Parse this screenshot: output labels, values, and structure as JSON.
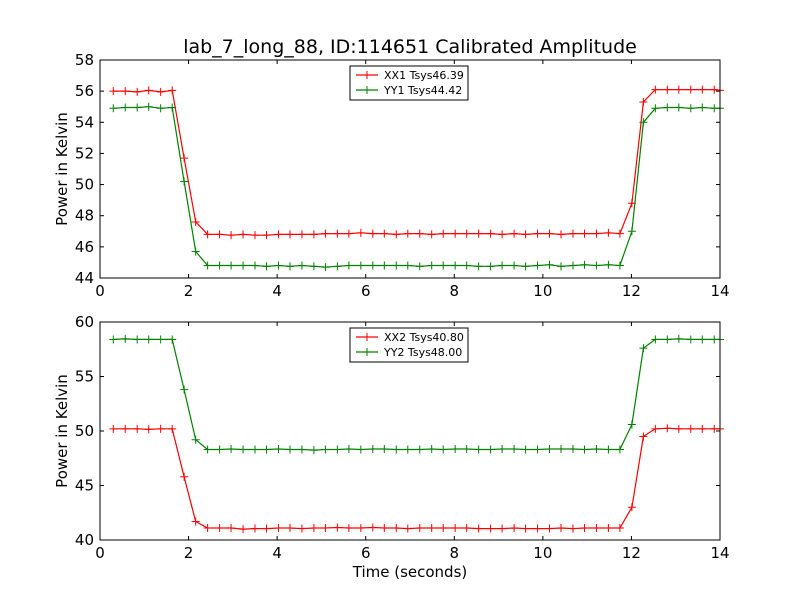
{
  "figure": {
    "title": "lab_7_long_88, ID:114651 Calibrated Amplitude"
  },
  "chart_data": [
    {
      "type": "line",
      "title": "lab_7_long_88, ID:114651 Calibrated Amplitude",
      "xlabel": "",
      "ylabel": "Power in Kelvin",
      "xlim": [
        0,
        14
      ],
      "ylim": [
        44,
        58
      ],
      "xticks": [
        0,
        2,
        4,
        6,
        8,
        10,
        12,
        14
      ],
      "yticks": [
        44,
        46,
        48,
        50,
        52,
        54,
        56,
        58
      ],
      "legend_position": "top-center",
      "x": [
        0.3,
        0.57,
        0.84,
        1.1,
        1.37,
        1.63,
        1.9,
        2.16,
        2.43,
        2.7,
        2.96,
        3.23,
        3.5,
        3.76,
        4.03,
        4.29,
        4.56,
        4.83,
        5.09,
        5.36,
        5.62,
        5.89,
        6.16,
        6.42,
        6.69,
        6.95,
        7.22,
        7.49,
        7.75,
        8.02,
        8.28,
        8.55,
        8.82,
        9.08,
        9.35,
        9.61,
        9.88,
        10.15,
        10.41,
        10.68,
        10.94,
        11.21,
        11.48,
        11.74,
        12.01,
        12.27,
        12.54,
        12.81,
        13.07,
        13.34,
        13.6,
        13.87,
        14.0
      ],
      "series": [
        {
          "name": "XX1 Tsys46.39",
          "color": "#ff0000",
          "values": [
            56.0,
            56.0,
            55.95,
            56.05,
            55.95,
            56.05,
            51.7,
            47.6,
            46.8,
            46.8,
            46.75,
            46.8,
            46.75,
            46.75,
            46.8,
            46.8,
            46.8,
            46.8,
            46.85,
            46.85,
            46.85,
            46.9,
            46.85,
            46.85,
            46.8,
            46.85,
            46.85,
            46.8,
            46.85,
            46.85,
            46.85,
            46.85,
            46.85,
            46.8,
            46.85,
            46.8,
            46.85,
            46.85,
            46.8,
            46.85,
            46.85,
            46.85,
            46.9,
            46.85,
            48.8,
            55.3,
            56.1,
            56.1,
            56.1,
            56.1,
            56.1,
            56.1,
            56.05
          ]
        },
        {
          "name": "YY1 Tsys44.42",
          "color": "#008000",
          "values": [
            54.9,
            54.95,
            54.95,
            55.0,
            54.9,
            54.95,
            50.2,
            45.7,
            44.8,
            44.8,
            44.8,
            44.8,
            44.8,
            44.75,
            44.8,
            44.75,
            44.8,
            44.75,
            44.7,
            44.75,
            44.8,
            44.8,
            44.8,
            44.8,
            44.8,
            44.8,
            44.75,
            44.8,
            44.8,
            44.8,
            44.8,
            44.75,
            44.75,
            44.8,
            44.8,
            44.75,
            44.8,
            44.85,
            44.75,
            44.8,
            44.85,
            44.8,
            44.85,
            44.8,
            47.0,
            54.0,
            54.9,
            54.95,
            54.95,
            54.9,
            54.95,
            54.9,
            54.9
          ]
        }
      ]
    },
    {
      "type": "line",
      "title": "",
      "xlabel": "Time (seconds)",
      "ylabel": "Power in Kelvin",
      "xlim": [
        0,
        14
      ],
      "ylim": [
        40,
        60
      ],
      "xticks": [
        0,
        2,
        4,
        6,
        8,
        10,
        12,
        14
      ],
      "yticks": [
        40,
        45,
        50,
        55,
        60
      ],
      "legend_position": "top-center",
      "x": [
        0.3,
        0.57,
        0.84,
        1.1,
        1.37,
        1.63,
        1.9,
        2.16,
        2.43,
        2.7,
        2.96,
        3.23,
        3.5,
        3.76,
        4.03,
        4.29,
        4.56,
        4.83,
        5.09,
        5.36,
        5.62,
        5.89,
        6.16,
        6.42,
        6.69,
        6.95,
        7.22,
        7.49,
        7.75,
        8.02,
        8.28,
        8.55,
        8.82,
        9.08,
        9.35,
        9.61,
        9.88,
        10.15,
        10.41,
        10.68,
        10.94,
        11.21,
        11.48,
        11.74,
        12.01,
        12.27,
        12.54,
        12.81,
        13.07,
        13.34,
        13.6,
        13.87,
        14.0
      ],
      "series": [
        {
          "name": "XX2 Tsys40.80",
          "color": "#ff0000",
          "values": [
            50.2,
            50.2,
            50.2,
            50.15,
            50.2,
            50.2,
            45.8,
            41.7,
            41.1,
            41.1,
            41.1,
            41.0,
            41.05,
            41.05,
            41.1,
            41.1,
            41.05,
            41.1,
            41.1,
            41.15,
            41.1,
            41.1,
            41.15,
            41.1,
            41.1,
            41.05,
            41.1,
            41.1,
            41.1,
            41.1,
            41.1,
            41.05,
            41.05,
            41.05,
            41.1,
            41.05,
            41.05,
            41.05,
            41.1,
            41.05,
            41.1,
            41.1,
            41.1,
            41.1,
            43.0,
            49.5,
            50.2,
            50.25,
            50.2,
            50.2,
            50.2,
            50.2,
            50.2
          ]
        },
        {
          "name": "YY2 Tsys48.00",
          "color": "#008000",
          "values": [
            58.4,
            58.45,
            58.4,
            58.4,
            58.4,
            58.4,
            53.8,
            49.2,
            48.3,
            48.3,
            48.35,
            48.3,
            48.3,
            48.3,
            48.35,
            48.3,
            48.3,
            48.25,
            48.3,
            48.3,
            48.35,
            48.3,
            48.35,
            48.35,
            48.3,
            48.3,
            48.3,
            48.35,
            48.3,
            48.35,
            48.35,
            48.3,
            48.3,
            48.35,
            48.35,
            48.3,
            48.3,
            48.35,
            48.35,
            48.35,
            48.3,
            48.35,
            48.3,
            48.3,
            50.6,
            57.6,
            58.4,
            58.4,
            58.45,
            58.4,
            58.4,
            58.4,
            58.4
          ]
        }
      ]
    }
  ]
}
